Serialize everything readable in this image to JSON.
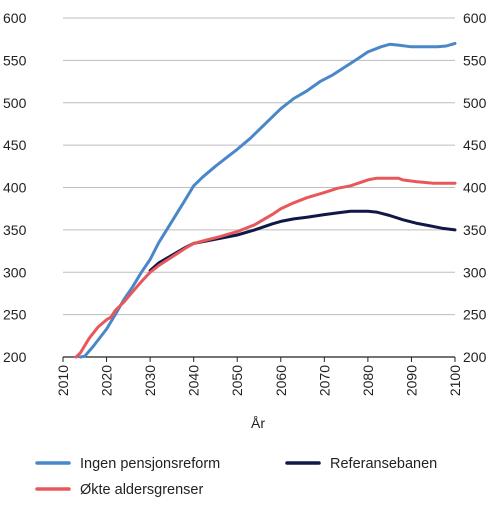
{
  "chart_data": {
    "type": "line",
    "xlabel": "År",
    "ylabel": "",
    "xlim": [
      2010,
      2100
    ],
    "ylim": [
      200,
      600
    ],
    "xticks": [
      "2010",
      "2020",
      "2030",
      "2040",
      "2050",
      "2060",
      "2070",
      "2080",
      "2090",
      "2100"
    ],
    "yticks": [
      "200",
      "250",
      "300",
      "350",
      "400",
      "450",
      "500",
      "550",
      "600"
    ],
    "right_axis": true,
    "grid": "horizontal",
    "legend_position": "bottom",
    "series": [
      {
        "name": "Ingen pensjonsreform",
        "color": "#4a87c8",
        "points": [
          [
            2014,
            200
          ],
          [
            2015,
            201
          ],
          [
            2017,
            213
          ],
          [
            2020,
            233
          ],
          [
            2022,
            250
          ],
          [
            2024,
            268
          ],
          [
            2026,
            283
          ],
          [
            2028,
            300
          ],
          [
            2030,
            315
          ],
          [
            2032,
            335
          ],
          [
            2035,
            360
          ],
          [
            2038,
            385
          ],
          [
            2040,
            402
          ],
          [
            2042,
            412
          ],
          [
            2045,
            425
          ],
          [
            2048,
            437
          ],
          [
            2050,
            445
          ],
          [
            2053,
            458
          ],
          [
            2056,
            473
          ],
          [
            2060,
            493
          ],
          [
            2063,
            505
          ],
          [
            2066,
            514
          ],
          [
            2069,
            525
          ],
          [
            2072,
            533
          ],
          [
            2075,
            543
          ],
          [
            2078,
            553
          ],
          [
            2080,
            560
          ],
          [
            2083,
            566
          ],
          [
            2085,
            569
          ],
          [
            2087,
            568
          ],
          [
            2090,
            566
          ],
          [
            2093,
            566
          ],
          [
            2096,
            566
          ],
          [
            2098,
            567
          ],
          [
            2100,
            570
          ]
        ]
      },
      {
        "name": "Økte aldersgrenser",
        "color": "#e8585b",
        "points": [
          [
            2013,
            200
          ],
          [
            2014,
            205
          ],
          [
            2016,
            222
          ],
          [
            2018,
            235
          ],
          [
            2020,
            244
          ],
          [
            2021,
            247
          ],
          [
            2022,
            255
          ],
          [
            2024,
            265
          ],
          [
            2026,
            277
          ],
          [
            2028,
            289
          ],
          [
            2030,
            300
          ],
          [
            2032,
            308
          ],
          [
            2035,
            318
          ],
          [
            2038,
            328
          ],
          [
            2040,
            334
          ],
          [
            2043,
            338
          ],
          [
            2046,
            342
          ],
          [
            2050,
            348
          ],
          [
            2054,
            356
          ],
          [
            2058,
            368
          ],
          [
            2060,
            375
          ],
          [
            2063,
            382
          ],
          [
            2066,
            388
          ],
          [
            2070,
            394
          ],
          [
            2073,
            399
          ],
          [
            2076,
            402
          ],
          [
            2080,
            409
          ],
          [
            2082,
            411
          ],
          [
            2085,
            411
          ],
          [
            2087,
            411
          ],
          [
            2088,
            409
          ],
          [
            2091,
            407
          ],
          [
            2093,
            406
          ],
          [
            2095,
            405
          ],
          [
            2100,
            405
          ]
        ]
      },
      {
        "name": "Referansebanen",
        "color": "#101848",
        "points": [
          [
            2030,
            302
          ],
          [
            2032,
            311
          ],
          [
            2035,
            320
          ],
          [
            2038,
            329
          ],
          [
            2040,
            334
          ],
          [
            2043,
            337
          ],
          [
            2046,
            340
          ],
          [
            2050,
            344
          ],
          [
            2054,
            350
          ],
          [
            2058,
            357
          ],
          [
            2060,
            360
          ],
          [
            2063,
            363
          ],
          [
            2066,
            365
          ],
          [
            2070,
            368
          ],
          [
            2073,
            370
          ],
          [
            2076,
            372
          ],
          [
            2080,
            372
          ],
          [
            2082,
            371
          ],
          [
            2085,
            367
          ],
          [
            2088,
            362
          ],
          [
            2091,
            358
          ],
          [
            2094,
            355
          ],
          [
            2097,
            352
          ],
          [
            2100,
            350
          ]
        ]
      }
    ]
  }
}
